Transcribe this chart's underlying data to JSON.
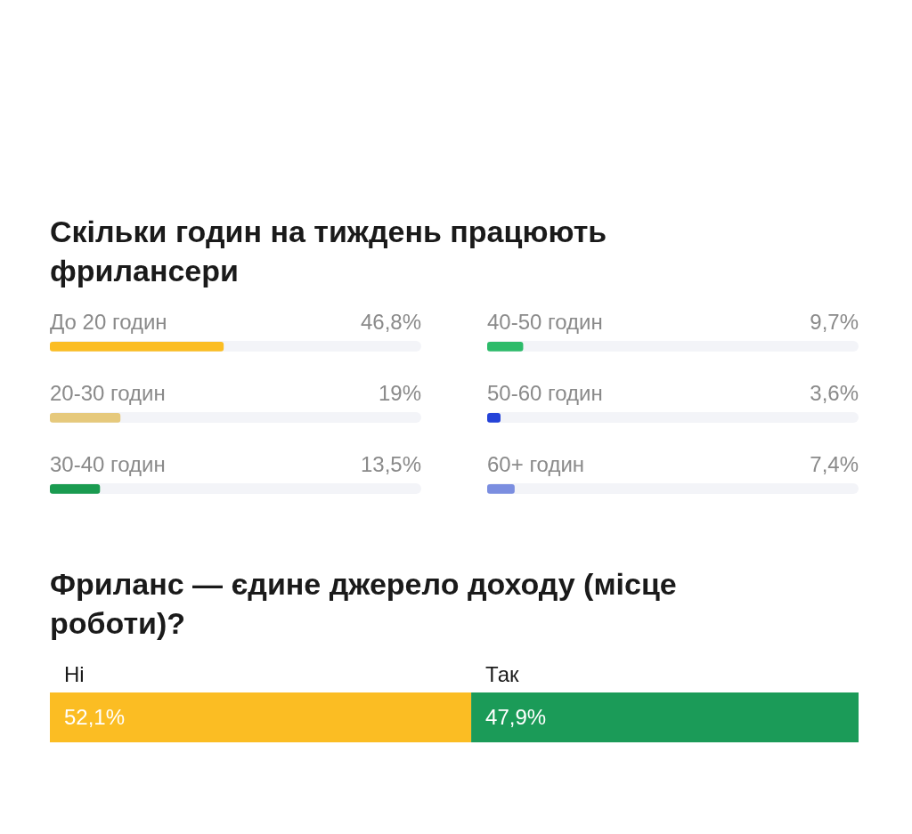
{
  "chart_data": [
    {
      "type": "bar",
      "orientation": "horizontal",
      "title": "Скільки годин на тиждень працюють фрилансери",
      "categories": [
        "До 20 годин",
        "20-30 годин",
        "30-40 годин"
      ],
      "values": [
        46.8,
        19,
        13.5
      ],
      "value_labels": [
        "46,8%",
        "19%",
        "13,5%"
      ],
      "colors": [
        "#fbbd23",
        "#e6c97c",
        "#1a9b50"
      ],
      "xlim": [
        0,
        100
      ]
    },
    {
      "type": "bar",
      "orientation": "horizontal",
      "categories": [
        "40-50 годин",
        "50-60 годин",
        "60+ годин"
      ],
      "values": [
        9.7,
        3.6,
        7.4
      ],
      "value_labels": [
        "9,7%",
        "3,6%",
        "7,4%"
      ],
      "colors": [
        "#2dbb6a",
        "#2543d8",
        "#7b8ee0"
      ],
      "xlim": [
        0,
        100
      ]
    },
    {
      "type": "bar",
      "orientation": "horizontal",
      "stacked": true,
      "title": "Фриланс — єдине джерело доходу (місце роботи)?",
      "categories": [
        null
      ],
      "xlim": [
        0,
        100
      ],
      "series": [
        {
          "name": "Ні",
          "color": "#fbbd23",
          "values": [
            52.1
          ],
          "value_labels": [
            "52,1%"
          ]
        },
        {
          "name": "Так",
          "color": "#1b9b58",
          "values": [
            47.9
          ],
          "value_labels": [
            "47,9%"
          ]
        }
      ]
    }
  ]
}
